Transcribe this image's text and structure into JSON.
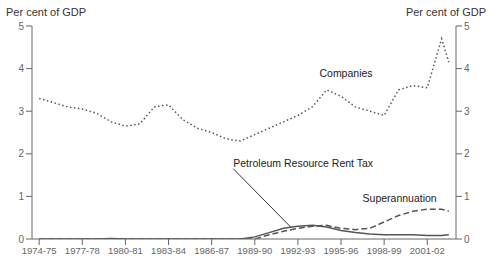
{
  "chart_data": {
    "type": "line",
    "x": [
      0,
      1,
      2,
      3,
      4,
      5,
      6,
      7,
      8,
      9,
      10,
      11,
      12,
      13,
      14,
      15,
      16,
      17,
      18,
      19,
      20,
      21,
      22,
      23,
      24,
      25,
      26,
      27,
      28,
      28.5
    ],
    "series": [
      {
        "name": "Companies",
        "color": "#555555",
        "line_style": "dotted",
        "values": [
          3.3,
          3.2,
          3.1,
          3.05,
          2.95,
          2.75,
          2.65,
          2.7,
          3.1,
          3.15,
          2.8,
          2.6,
          2.5,
          2.35,
          2.3,
          2.45,
          2.6,
          2.75,
          2.9,
          3.1,
          3.5,
          3.35,
          3.1,
          3.0,
          2.9,
          3.5,
          3.6,
          3.55,
          4.7,
          4.15
        ]
      },
      {
        "name": "Petroleum Resource Rent Tax",
        "color": "#555555",
        "line_style": "solid",
        "values": [
          0.0,
          0.0,
          0.0,
          0.0,
          0.0,
          0.01,
          0.0,
          0.0,
          0.0,
          0.0,
          0.0,
          0.0,
          0.0,
          0.0,
          0.0,
          0.05,
          0.15,
          0.25,
          0.3,
          0.32,
          0.28,
          0.2,
          0.15,
          0.12,
          0.1,
          0.1,
          0.1,
          0.08,
          0.08,
          0.1
        ]
      },
      {
        "name": "Superannuation",
        "color": "#555555",
        "line_style": "dashed",
        "values": [
          0.0,
          0.0,
          0.0,
          0.0,
          0.0,
          0.0,
          0.0,
          0.0,
          0.0,
          0.0,
          0.0,
          0.0,
          0.0,
          0.0,
          0.0,
          0.0,
          0.1,
          0.18,
          0.25,
          0.3,
          0.32,
          0.25,
          0.22,
          0.25,
          0.4,
          0.55,
          0.65,
          0.7,
          0.7,
          0.65
        ]
      }
    ],
    "xlim": [
      -0.5,
      29.0
    ],
    "xticks": [
      {
        "value": 0,
        "label": "1974-75"
      },
      {
        "value": 3,
        "label": "1977-78"
      },
      {
        "value": 6,
        "label": "1980-81"
      },
      {
        "value": 9,
        "label": "1983-84"
      },
      {
        "value": 12,
        "label": "1986-87"
      },
      {
        "value": 15,
        "label": "1989-90"
      },
      {
        "value": 18,
        "label": "1992-93"
      },
      {
        "value": 21,
        "label": "1995-96"
      },
      {
        "value": 24,
        "label": "1998-99"
      },
      {
        "value": 27,
        "label": "2001-02"
      }
    ],
    "ylim": [
      0,
      5
    ],
    "yticks": [
      0,
      1,
      2,
      3,
      4,
      5
    ],
    "y2lim": [
      0,
      5
    ],
    "y2ticks": [
      0,
      1,
      2,
      3,
      4,
      5
    ],
    "ylabel": "Per cent of GDP",
    "y2label": "Per cent of GDP",
    "grid": false,
    "annotations": [
      {
        "text": "Companies",
        "x": 19.5,
        "y": 3.75
      },
      {
        "text": "Superannuation",
        "x": 22.5,
        "y": 0.82
      },
      {
        "text": "Petroleum Resource Rent Tax",
        "x": 13.5,
        "y": 1.65,
        "arrow_x": 17.5,
        "arrow_y": 0.28
      }
    ]
  }
}
